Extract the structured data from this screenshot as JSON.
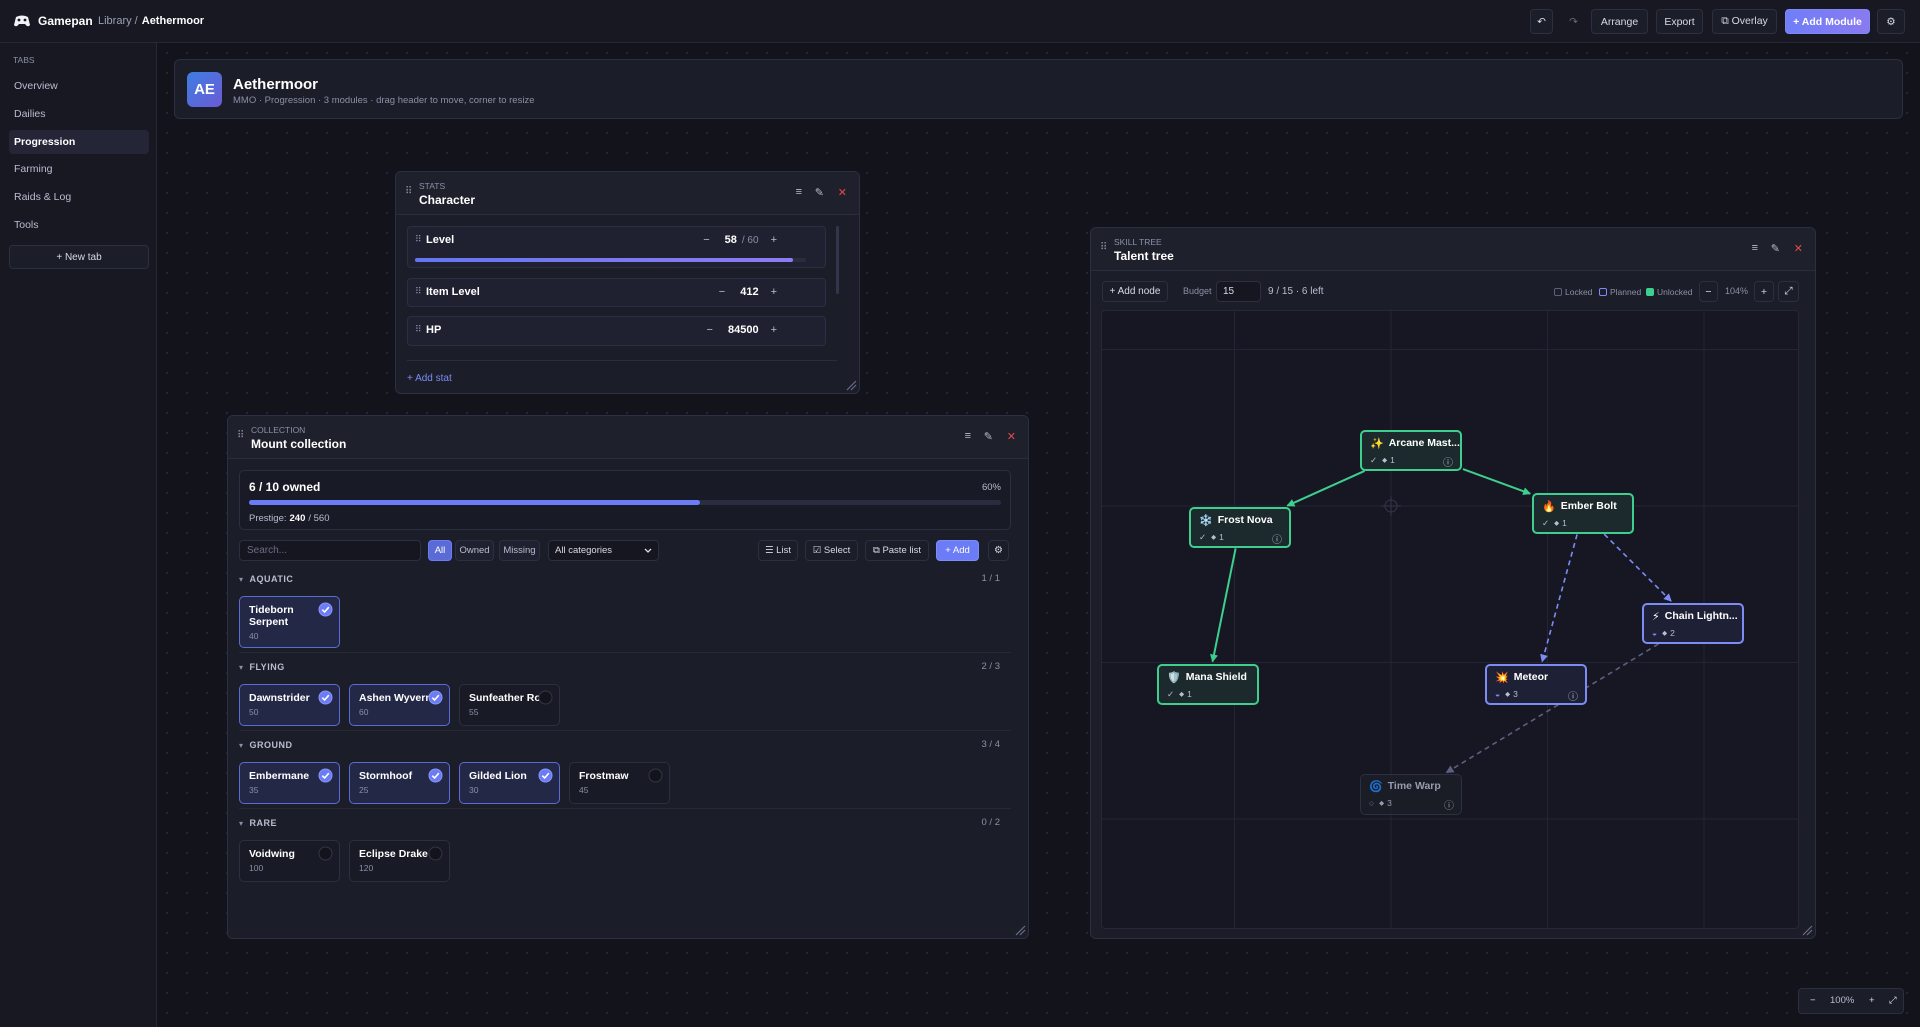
{
  "topbar": {
    "brand": "Gamepan",
    "breadcrumb_parent": "Library /",
    "breadcrumb_current": "Aethermoor",
    "undo": "↶",
    "redo": "↷",
    "buttons": [
      "Arrange",
      "Export",
      "⧉ Overlay",
      "+ Add Module"
    ],
    "settings": "⚙"
  },
  "sidebar": {
    "heading": "TABS",
    "tabs": [
      "Overview",
      "Dailies",
      "Progression",
      "Farming",
      "Raids & Log",
      "Tools"
    ],
    "selected_tab": 2,
    "new_tab": "+ New tab"
  },
  "header": {
    "avatar": "AE",
    "title": "Aethermoor",
    "subtitle": "MMO · Progression · 3 modules · drag header to move, corner to resize"
  },
  "panel_icons": [
    "≡",
    "✎",
    "✕"
  ],
  "grip": "⠿",
  "stepper": [
    "−",
    "+"
  ],
  "character": {
    "kicker": "STATS",
    "title": "Character",
    "stats": [
      {
        "name": "Level",
        "value": 58,
        "max": {
          "value": 60,
          "label": "/ 60"
        }
      },
      {
        "name": "Item Level",
        "value": 412
      },
      {
        "name": "HP",
        "value": 84500
      }
    ],
    "add_stat": "+ Add stat"
  },
  "collection": {
    "kicker": "COLLECTION",
    "title": "Mount collection",
    "owned_summary": "6 / 10 owned",
    "owned_percent": {
      "value": 60,
      "label": "60%"
    },
    "prestige_label": "Prestige:",
    "prestige_value": "240",
    "prestige_max": "/ 560",
    "search_placeholder": "Search...",
    "filters": [
      "All",
      "Owned",
      "Missing"
    ],
    "active_filter": 0,
    "category_filter": "All categories",
    "actions": [
      "☰ List",
      "☑ Select",
      "⧉ Paste list",
      "+ Add"
    ],
    "settings": "⚙",
    "collapse": "▾",
    "groups": [
      {
        "name": "AQUATIC",
        "count": "1 / 1",
        "mounts": [
          {
            "name": "Tideborn Serpent",
            "value": 40,
            "owned": true
          }
        ]
      },
      {
        "name": "FLYING",
        "count": "2 / 3",
        "mounts": [
          {
            "name": "Dawnstrider",
            "value": 50,
            "owned": true
          },
          {
            "name": "Ashen Wyvern",
            "value": 60,
            "owned": true
          },
          {
            "name": "Sunfeather Roc",
            "value": 55,
            "owned": false
          }
        ]
      },
      {
        "name": "GROUND",
        "count": "3 / 4",
        "mounts": [
          {
            "name": "Embermane",
            "value": 35,
            "owned": true
          },
          {
            "name": "Stormhoof",
            "value": 25,
            "owned": true
          },
          {
            "name": "Gilded Lion",
            "value": 30,
            "owned": true
          },
          {
            "name": "Frostmaw",
            "value": 45,
            "owned": false
          }
        ]
      },
      {
        "name": "RARE",
        "count": "0 / 2",
        "mounts": [
          {
            "name": "Voidwing",
            "value": 100,
            "owned": false
          },
          {
            "name": "Eclipse Drake",
            "value": 120,
            "owned": false
          }
        ]
      }
    ]
  },
  "talent_tree": {
    "kicker": "SKILL TREE",
    "title": "Talent tree",
    "add_node": "+ Add node",
    "budget_label": "Budget",
    "budget": 15,
    "budget_status": "9 / 15 · 6 left",
    "legend": [
      {
        "label": "Locked",
        "state": "locked"
      },
      {
        "label": "Planned",
        "state": "planned"
      },
      {
        "label": "Unlocked",
        "state": "unlocked"
      }
    ],
    "zoom_out": "−",
    "zoom": "104%",
    "zoom_in": "+",
    "fit": "⤢",
    "cost_glyph": "◆",
    "nodes": [
      {
        "icon": "✨",
        "name": "Arcane Mast...",
        "state": "unlocked",
        "status": "✓",
        "cost": 1,
        "info": "ⓘ"
      },
      {
        "icon": "❄️",
        "name": "Frost Nova",
        "state": "unlocked",
        "status": "✓",
        "cost": 1,
        "info": "ⓘ"
      },
      {
        "icon": "🔥",
        "name": "Ember Bolt",
        "state": "unlocked",
        "status": "✓",
        "cost": 1
      },
      {
        "icon": "⚡",
        "name": "Chain Lightn...",
        "state": "planned",
        "status": "◒",
        "cost": 2
      },
      {
        "icon": "🛡️",
        "name": "Mana Shield",
        "state": "unlocked",
        "status": "✓",
        "cost": 1
      },
      {
        "icon": "💥",
        "name": "Meteor",
        "state": "planned",
        "status": "◒",
        "cost": 3,
        "info": "ⓘ"
      },
      {
        "icon": "🌀",
        "name": "Time Warp",
        "state": "locked",
        "status": "○",
        "cost": 3,
        "info": "ⓘ"
      }
    ],
    "edges": [
      [
        0,
        1
      ],
      [
        0,
        2
      ],
      [
        1,
        4
      ],
      [
        2,
        5
      ],
      [
        2,
        3
      ],
      [
        3,
        6
      ]
    ]
  },
  "canvas_zoom": {
    "zoom_out": "−",
    "zoom": "100%",
    "zoom_in": "+",
    "fit": "⤢"
  }
}
